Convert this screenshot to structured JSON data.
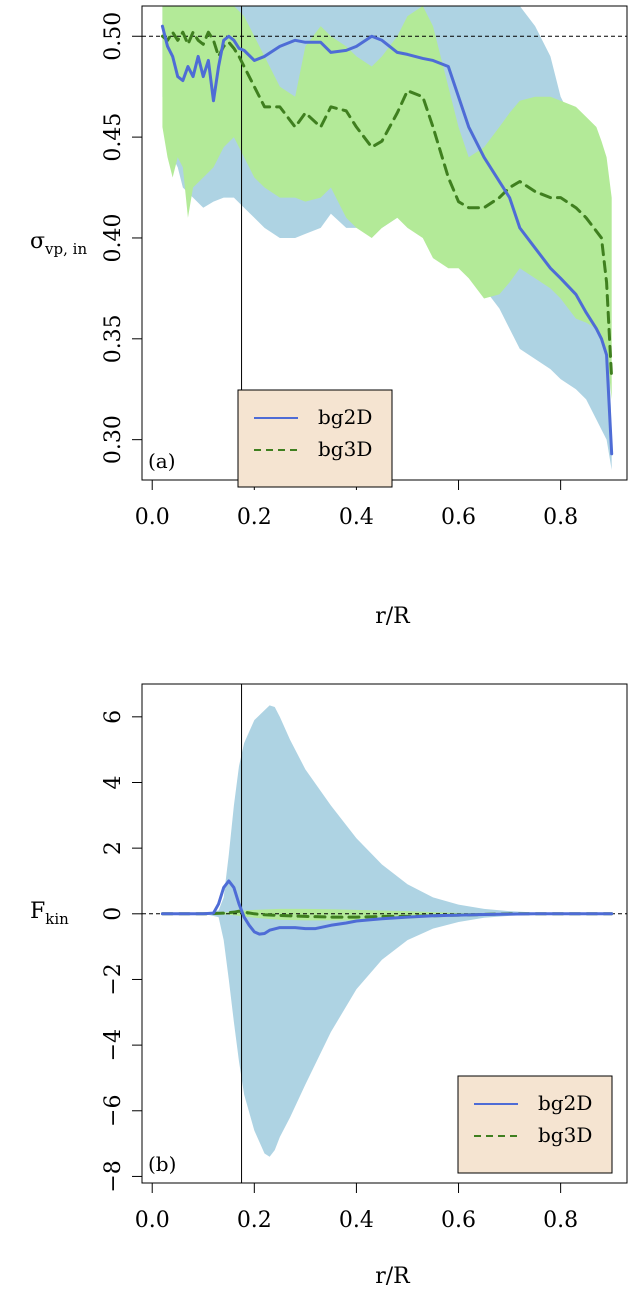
{
  "colors": {
    "bg2d_line": "#4e6cd6",
    "bg3d_line": "#3f7f1f",
    "bg2d_band": "#aed3e3",
    "bg3d_band": "#b3ea98",
    "legend_bg": "#f5e4d1"
  },
  "chart_data": [
    {
      "type": "line",
      "panel_tag": "(a)",
      "xlabel": "r/R",
      "ylabel_main": "σ",
      "ylabel_sub": "vp, in",
      "xlim": [
        -0.02,
        0.93
      ],
      "ylim": [
        0.28,
        0.515
      ],
      "xticks": [
        0.0,
        0.2,
        0.4,
        0.6,
        0.8
      ],
      "xtick_labels": [
        "0.0",
        "0.2",
        "0.4",
        "0.6",
        "0.8"
      ],
      "yticks": [
        0.3,
        0.35,
        0.4,
        0.45,
        0.5
      ],
      "ytick_labels": [
        "0.30",
        "0.35",
        "0.40",
        "0.45",
        "0.50"
      ],
      "hline": 0.5,
      "vline": 0.175,
      "legend": {
        "position": "bottom-center",
        "entries": [
          "bg2D",
          "bg3D"
        ]
      },
      "series": [
        {
          "name": "bg2D",
          "x": [
            0.02,
            0.03,
            0.04,
            0.05,
            0.06,
            0.07,
            0.08,
            0.09,
            0.1,
            0.11,
            0.12,
            0.13,
            0.14,
            0.15,
            0.16,
            0.17,
            0.18,
            0.2,
            0.22,
            0.25,
            0.28,
            0.3,
            0.33,
            0.35,
            0.38,
            0.4,
            0.43,
            0.45,
            0.48,
            0.5,
            0.53,
            0.55,
            0.58,
            0.6,
            0.62,
            0.65,
            0.7,
            0.72,
            0.75,
            0.78,
            0.8,
            0.83,
            0.85,
            0.87,
            0.88,
            0.89,
            0.9
          ],
          "values": [
            0.505,
            0.495,
            0.49,
            0.48,
            0.478,
            0.485,
            0.48,
            0.49,
            0.48,
            0.488,
            0.468,
            0.485,
            0.498,
            0.5,
            0.498,
            0.494,
            0.493,
            0.488,
            0.49,
            0.495,
            0.498,
            0.497,
            0.497,
            0.492,
            0.493,
            0.495,
            0.5,
            0.498,
            0.492,
            0.491,
            0.489,
            0.488,
            0.485,
            0.47,
            0.455,
            0.44,
            0.42,
            0.405,
            0.395,
            0.385,
            0.38,
            0.372,
            0.363,
            0.355,
            0.35,
            0.342,
            0.293
          ]
        },
        {
          "name": "bg3D",
          "x": [
            0.02,
            0.03,
            0.04,
            0.05,
            0.06,
            0.07,
            0.08,
            0.09,
            0.1,
            0.11,
            0.12,
            0.13,
            0.14,
            0.15,
            0.16,
            0.17,
            0.18,
            0.2,
            0.22,
            0.25,
            0.28,
            0.3,
            0.33,
            0.35,
            0.38,
            0.4,
            0.43,
            0.45,
            0.48,
            0.5,
            0.53,
            0.55,
            0.58,
            0.6,
            0.62,
            0.65,
            0.68,
            0.7,
            0.72,
            0.75,
            0.78,
            0.8,
            0.83,
            0.85,
            0.88,
            0.89,
            0.9
          ],
          "values": [
            0.5,
            0.498,
            0.502,
            0.498,
            0.502,
            0.496,
            0.502,
            0.498,
            0.496,
            0.502,
            0.498,
            0.49,
            0.495,
            0.497,
            0.494,
            0.49,
            0.485,
            0.475,
            0.465,
            0.465,
            0.455,
            0.462,
            0.455,
            0.465,
            0.463,
            0.455,
            0.445,
            0.448,
            0.462,
            0.473,
            0.47,
            0.455,
            0.43,
            0.418,
            0.415,
            0.415,
            0.42,
            0.425,
            0.428,
            0.423,
            0.42,
            0.42,
            0.415,
            0.41,
            0.4,
            0.378,
            0.33
          ]
        }
      ],
      "bands": [
        {
          "series": "bg2D",
          "x": [
            0.02,
            0.03,
            0.04,
            0.05,
            0.06,
            0.08,
            0.1,
            0.12,
            0.14,
            0.16,
            0.18,
            0.2,
            0.22,
            0.25,
            0.28,
            0.3,
            0.33,
            0.35,
            0.38,
            0.4,
            0.43,
            0.45,
            0.48,
            0.5,
            0.53,
            0.55,
            0.58,
            0.6,
            0.62,
            0.65,
            0.68,
            0.7,
            0.72,
            0.75,
            0.78,
            0.8,
            0.83,
            0.85,
            0.87,
            0.88,
            0.89,
            0.9
          ],
          "lower": [
            0.47,
            0.46,
            0.44,
            0.435,
            0.425,
            0.42,
            0.415,
            0.418,
            0.42,
            0.42,
            0.415,
            0.41,
            0.405,
            0.4,
            0.4,
            0.402,
            0.405,
            0.412,
            0.405,
            0.405,
            0.415,
            0.405,
            0.41,
            0.415,
            0.422,
            0.418,
            0.412,
            0.4,
            0.385,
            0.375,
            0.365,
            0.355,
            0.345,
            0.34,
            0.335,
            0.33,
            0.325,
            0.32,
            0.31,
            0.305,
            0.3,
            0.285
          ],
          "upper": [
            0.515,
            0.515,
            0.515,
            0.515,
            0.515,
            0.515,
            0.515,
            0.515,
            0.515,
            0.515,
            0.515,
            0.515,
            0.515,
            0.515,
            0.515,
            0.515,
            0.515,
            0.515,
            0.515,
            0.515,
            0.515,
            0.515,
            0.515,
            0.515,
            0.515,
            0.515,
            0.515,
            0.515,
            0.515,
            0.515,
            0.515,
            0.515,
            0.515,
            0.505,
            0.49,
            0.47,
            0.455,
            0.44,
            0.42,
            0.405,
            0.39,
            0.3
          ]
        },
        {
          "series": "bg3D",
          "x": [
            0.02,
            0.03,
            0.04,
            0.05,
            0.06,
            0.07,
            0.08,
            0.1,
            0.12,
            0.14,
            0.16,
            0.18,
            0.2,
            0.22,
            0.25,
            0.28,
            0.3,
            0.33,
            0.35,
            0.38,
            0.4,
            0.43,
            0.45,
            0.48,
            0.5,
            0.53,
            0.55,
            0.58,
            0.6,
            0.62,
            0.65,
            0.68,
            0.7,
            0.72,
            0.75,
            0.78,
            0.8,
            0.83,
            0.85,
            0.87,
            0.88,
            0.89,
            0.9
          ],
          "lower": [
            0.455,
            0.44,
            0.43,
            0.44,
            0.435,
            0.41,
            0.425,
            0.43,
            0.435,
            0.445,
            0.45,
            0.44,
            0.43,
            0.425,
            0.42,
            0.42,
            0.418,
            0.42,
            0.425,
            0.41,
            0.405,
            0.4,
            0.405,
            0.41,
            0.405,
            0.4,
            0.39,
            0.385,
            0.385,
            0.38,
            0.37,
            0.372,
            0.378,
            0.385,
            0.38,
            0.375,
            0.37,
            0.36,
            0.358,
            0.355,
            0.35,
            0.345,
            0.32
          ],
          "upper": [
            0.515,
            0.515,
            0.515,
            0.515,
            0.515,
            0.515,
            0.515,
            0.515,
            0.515,
            0.515,
            0.515,
            0.51,
            0.5,
            0.49,
            0.475,
            0.47,
            0.495,
            0.505,
            0.5,
            0.495,
            0.49,
            0.485,
            0.49,
            0.5,
            0.51,
            0.515,
            0.505,
            0.475,
            0.455,
            0.44,
            0.445,
            0.455,
            0.462,
            0.468,
            0.47,
            0.47,
            0.468,
            0.465,
            0.46,
            0.455,
            0.448,
            0.44,
            0.42
          ]
        }
      ]
    },
    {
      "type": "line",
      "panel_tag": "(b)",
      "xlabel": "r/R",
      "ylabel_main": "F",
      "ylabel_sub": "kin",
      "xlim": [
        -0.02,
        0.93
      ],
      "ylim": [
        -8.2,
        7.0
      ],
      "xticks": [
        0.0,
        0.2,
        0.4,
        0.6,
        0.8
      ],
      "xtick_labels": [
        "0.0",
        "0.2",
        "0.4",
        "0.6",
        "0.8"
      ],
      "yticks": [
        -8,
        -6,
        -4,
        -2,
        0,
        2,
        4,
        6
      ],
      "ytick_labels": [
        "−8",
        "−6",
        "−4",
        "−2",
        "0",
        "2",
        "4",
        "6"
      ],
      "hline": 0,
      "vline": 0.175,
      "legend": {
        "position": "bottom-right",
        "entries": [
          "bg2D",
          "bg3D"
        ]
      },
      "series": [
        {
          "name": "bg2D",
          "x": [
            0.02,
            0.05,
            0.1,
            0.12,
            0.13,
            0.14,
            0.15,
            0.16,
            0.17,
            0.18,
            0.19,
            0.2,
            0.21,
            0.22,
            0.23,
            0.25,
            0.28,
            0.3,
            0.32,
            0.35,
            0.38,
            0.4,
            0.45,
            0.5,
            0.55,
            0.6,
            0.65,
            0.7,
            0.75,
            0.8,
            0.85,
            0.9
          ],
          "values": [
            0,
            0,
            0,
            0.02,
            0.3,
            0.8,
            1.0,
            0.8,
            0.3,
            -0.1,
            -0.35,
            -0.55,
            -0.62,
            -0.6,
            -0.5,
            -0.42,
            -0.42,
            -0.45,
            -0.45,
            -0.35,
            -0.28,
            -0.22,
            -0.15,
            -0.1,
            -0.06,
            -0.04,
            -0.02,
            -0.01,
            0,
            0,
            0,
            0
          ]
        },
        {
          "name": "bg3D",
          "x": [
            0.02,
            0.05,
            0.1,
            0.14,
            0.16,
            0.17,
            0.18,
            0.2,
            0.22,
            0.25,
            0.3,
            0.35,
            0.4,
            0.45,
            0.5,
            0.55,
            0.6,
            0.65,
            0.7,
            0.8,
            0.9
          ],
          "values": [
            0,
            0,
            0,
            0.02,
            0.05,
            0.08,
            0.05,
            0,
            -0.03,
            -0.05,
            -0.08,
            -0.1,
            -0.1,
            -0.08,
            -0.08,
            -0.06,
            -0.04,
            -0.02,
            0,
            0,
            0
          ]
        }
      ],
      "bands": [
        {
          "series": "bg2D",
          "x": [
            0.02,
            0.1,
            0.13,
            0.14,
            0.15,
            0.16,
            0.17,
            0.18,
            0.2,
            0.22,
            0.23,
            0.24,
            0.25,
            0.27,
            0.3,
            0.35,
            0.4,
            0.45,
            0.5,
            0.55,
            0.6,
            0.65,
            0.7,
            0.75,
            0.8,
            0.9
          ],
          "lower": [
            0,
            0,
            -0.1,
            -0.8,
            -2.0,
            -3.3,
            -4.5,
            -5.5,
            -6.6,
            -7.3,
            -7.4,
            -7.2,
            -6.8,
            -6.2,
            -5.2,
            -3.6,
            -2.3,
            -1.4,
            -0.8,
            -0.45,
            -0.25,
            -0.12,
            -0.06,
            -0.03,
            -0.01,
            0
          ],
          "upper": [
            0,
            0,
            0.1,
            0.5,
            1.8,
            3.3,
            4.5,
            5.2,
            5.9,
            6.2,
            6.35,
            6.3,
            6.0,
            5.3,
            4.4,
            3.3,
            2.3,
            1.5,
            0.9,
            0.5,
            0.28,
            0.15,
            0.08,
            0.04,
            0.02,
            0
          ]
        },
        {
          "series": "bg3D",
          "x": [
            0.02,
            0.1,
            0.15,
            0.18,
            0.2,
            0.25,
            0.3,
            0.35,
            0.4,
            0.45,
            0.5,
            0.55,
            0.6,
            0.65,
            0.7,
            0.8,
            0.9
          ],
          "lower": [
            0,
            0,
            -0.03,
            -0.08,
            -0.12,
            -0.18,
            -0.2,
            -0.2,
            -0.2,
            -0.18,
            -0.15,
            -0.1,
            -0.06,
            -0.03,
            -0.01,
            0,
            0
          ],
          "upper": [
            0,
            0,
            0.05,
            0.1,
            0.12,
            0.15,
            0.15,
            0.14,
            0.12,
            0.1,
            0.08,
            0.05,
            0.03,
            0.02,
            0.01,
            0,
            0
          ]
        }
      ]
    }
  ]
}
